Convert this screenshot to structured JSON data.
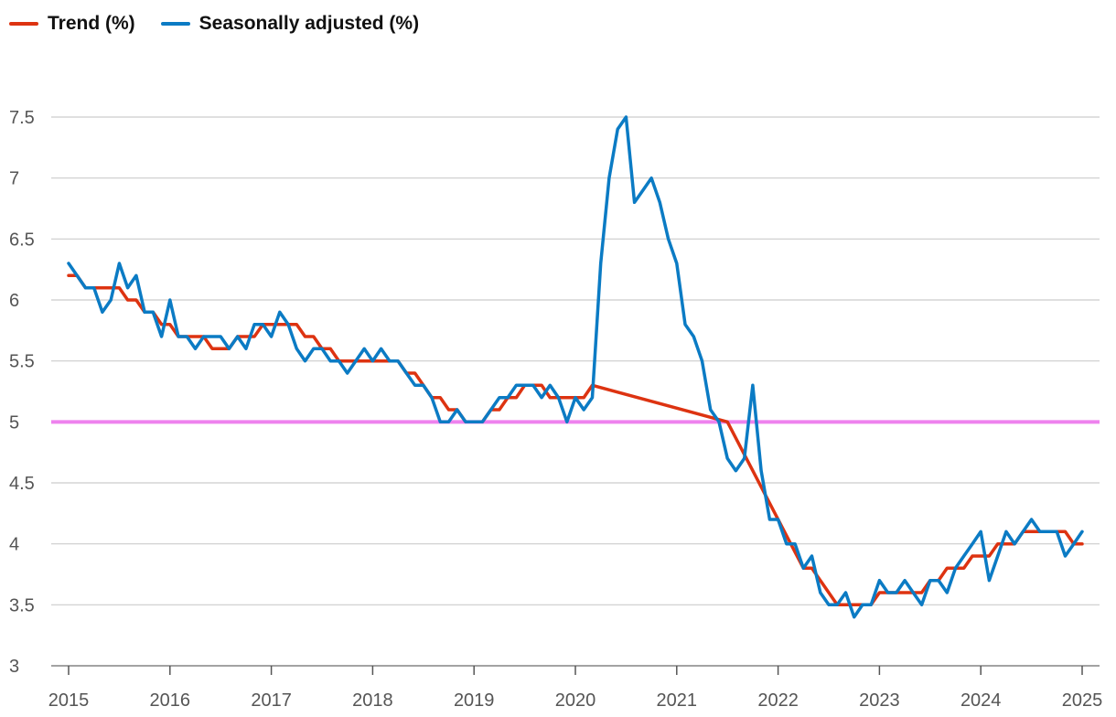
{
  "chart_data": {
    "type": "line",
    "title": "",
    "xlabel": "",
    "ylabel": "",
    "xlim": [
      2015,
      2025
    ],
    "ylim": [
      3,
      7.5
    ],
    "y_ticks": [
      "3",
      "3.5",
      "4",
      "4.5",
      "5",
      "5.5",
      "6",
      "6.5",
      "7",
      "7.5"
    ],
    "x_ticks": [
      "2015",
      "2016",
      "2017",
      "2018",
      "2019",
      "2020",
      "2021",
      "2022",
      "2023",
      "2024",
      "2025"
    ],
    "grid": "horizontal",
    "legend_position": "top-left",
    "reference_line": {
      "y": 5,
      "color": "#ee82ee"
    },
    "series": [
      {
        "name": "Trend (%)",
        "color": "#dd3311",
        "points": [
          [
            2015.0,
            6.2
          ],
          [
            2015.083,
            6.2
          ],
          [
            2015.167,
            6.1
          ],
          [
            2015.25,
            6.1
          ],
          [
            2015.333,
            6.1
          ],
          [
            2015.417,
            6.1
          ],
          [
            2015.5,
            6.1
          ],
          [
            2015.583,
            6.0
          ],
          [
            2015.667,
            6.0
          ],
          [
            2015.75,
            5.9
          ],
          [
            2015.833,
            5.9
          ],
          [
            2015.917,
            5.8
          ],
          [
            2016.0,
            5.8
          ],
          [
            2016.083,
            5.7
          ],
          [
            2016.167,
            5.7
          ],
          [
            2016.25,
            5.7
          ],
          [
            2016.333,
            5.7
          ],
          [
            2016.417,
            5.6
          ],
          [
            2016.5,
            5.6
          ],
          [
            2016.583,
            5.6
          ],
          [
            2016.667,
            5.7
          ],
          [
            2016.75,
            5.7
          ],
          [
            2016.833,
            5.7
          ],
          [
            2016.917,
            5.8
          ],
          [
            2017.0,
            5.8
          ],
          [
            2017.083,
            5.8
          ],
          [
            2017.167,
            5.8
          ],
          [
            2017.25,
            5.8
          ],
          [
            2017.333,
            5.7
          ],
          [
            2017.417,
            5.7
          ],
          [
            2017.5,
            5.6
          ],
          [
            2017.583,
            5.6
          ],
          [
            2017.667,
            5.5
          ],
          [
            2017.75,
            5.5
          ],
          [
            2017.833,
            5.5
          ],
          [
            2017.917,
            5.5
          ],
          [
            2018.0,
            5.5
          ],
          [
            2018.083,
            5.5
          ],
          [
            2018.167,
            5.5
          ],
          [
            2018.25,
            5.5
          ],
          [
            2018.333,
            5.4
          ],
          [
            2018.417,
            5.4
          ],
          [
            2018.5,
            5.3
          ],
          [
            2018.583,
            5.2
          ],
          [
            2018.667,
            5.2
          ],
          [
            2018.75,
            5.1
          ],
          [
            2018.833,
            5.1
          ],
          [
            2018.917,
            5.0
          ],
          [
            2019.0,
            5.0
          ],
          [
            2019.083,
            5.0
          ],
          [
            2019.167,
            5.1
          ],
          [
            2019.25,
            5.1
          ],
          [
            2019.333,
            5.2
          ],
          [
            2019.417,
            5.2
          ],
          [
            2019.5,
            5.3
          ],
          [
            2019.583,
            5.3
          ],
          [
            2019.667,
            5.3
          ],
          [
            2019.75,
            5.2
          ],
          [
            2019.833,
            5.2
          ],
          [
            2019.917,
            5.2
          ],
          [
            2020.0,
            5.2
          ],
          [
            2020.083,
            5.2
          ],
          [
            2020.167,
            5.3
          ],
          [
            2021.5,
            5.0
          ],
          [
            2022.25,
            3.8
          ],
          [
            2022.333,
            3.8
          ],
          [
            2022.417,
            3.7
          ],
          [
            2022.5,
            3.6
          ],
          [
            2022.583,
            3.5
          ],
          [
            2022.667,
            3.5
          ],
          [
            2022.75,
            3.5
          ],
          [
            2022.833,
            3.5
          ],
          [
            2022.917,
            3.5
          ],
          [
            2023.0,
            3.6
          ],
          [
            2023.083,
            3.6
          ],
          [
            2023.167,
            3.6
          ],
          [
            2023.25,
            3.6
          ],
          [
            2023.333,
            3.6
          ],
          [
            2023.417,
            3.6
          ],
          [
            2023.5,
            3.7
          ],
          [
            2023.583,
            3.7
          ],
          [
            2023.667,
            3.8
          ],
          [
            2023.75,
            3.8
          ],
          [
            2023.833,
            3.8
          ],
          [
            2023.917,
            3.9
          ],
          [
            2024.0,
            3.9
          ],
          [
            2024.083,
            3.9
          ],
          [
            2024.167,
            4.0
          ],
          [
            2024.25,
            4.0
          ],
          [
            2024.333,
            4.0
          ],
          [
            2024.417,
            4.1
          ],
          [
            2024.5,
            4.1
          ],
          [
            2024.583,
            4.1
          ],
          [
            2024.667,
            4.1
          ],
          [
            2024.75,
            4.1
          ],
          [
            2024.833,
            4.1
          ],
          [
            2024.917,
            4.0
          ],
          [
            2025.0,
            4.0
          ]
        ]
      },
      {
        "name": "Seasonally adjusted (%)",
        "color": "#0b7bc4",
        "points": [
          [
            2015.0,
            6.3
          ],
          [
            2015.083,
            6.2
          ],
          [
            2015.167,
            6.1
          ],
          [
            2015.25,
            6.1
          ],
          [
            2015.333,
            5.9
          ],
          [
            2015.417,
            6.0
          ],
          [
            2015.5,
            6.3
          ],
          [
            2015.583,
            6.1
          ],
          [
            2015.667,
            6.2
          ],
          [
            2015.75,
            5.9
          ],
          [
            2015.833,
            5.9
          ],
          [
            2015.917,
            5.7
          ],
          [
            2016.0,
            6.0
          ],
          [
            2016.083,
            5.7
          ],
          [
            2016.167,
            5.7
          ],
          [
            2016.25,
            5.6
          ],
          [
            2016.333,
            5.7
          ],
          [
            2016.417,
            5.7
          ],
          [
            2016.5,
            5.7
          ],
          [
            2016.583,
            5.6
          ],
          [
            2016.667,
            5.7
          ],
          [
            2016.75,
            5.6
          ],
          [
            2016.833,
            5.8
          ],
          [
            2016.917,
            5.8
          ],
          [
            2017.0,
            5.7
          ],
          [
            2017.083,
            5.9
          ],
          [
            2017.167,
            5.8
          ],
          [
            2017.25,
            5.6
          ],
          [
            2017.333,
            5.5
          ],
          [
            2017.417,
            5.6
          ],
          [
            2017.5,
            5.6
          ],
          [
            2017.583,
            5.5
          ],
          [
            2017.667,
            5.5
          ],
          [
            2017.75,
            5.4
          ],
          [
            2017.833,
            5.5
          ],
          [
            2017.917,
            5.6
          ],
          [
            2018.0,
            5.5
          ],
          [
            2018.083,
            5.6
          ],
          [
            2018.167,
            5.5
          ],
          [
            2018.25,
            5.5
          ],
          [
            2018.333,
            5.4
          ],
          [
            2018.417,
            5.3
          ],
          [
            2018.5,
            5.3
          ],
          [
            2018.583,
            5.2
          ],
          [
            2018.667,
            5.0
          ],
          [
            2018.75,
            5.0
          ],
          [
            2018.833,
            5.1
          ],
          [
            2018.917,
            5.0
          ],
          [
            2019.0,
            5.0
          ],
          [
            2019.083,
            5.0
          ],
          [
            2019.167,
            5.1
          ],
          [
            2019.25,
            5.2
          ],
          [
            2019.333,
            5.2
          ],
          [
            2019.417,
            5.3
          ],
          [
            2019.5,
            5.3
          ],
          [
            2019.583,
            5.3
          ],
          [
            2019.667,
            5.2
          ],
          [
            2019.75,
            5.3
          ],
          [
            2019.833,
            5.2
          ],
          [
            2019.917,
            5.0
          ],
          [
            2020.0,
            5.2
          ],
          [
            2020.083,
            5.1
          ],
          [
            2020.167,
            5.2
          ],
          [
            2020.25,
            6.3
          ],
          [
            2020.333,
            7.0
          ],
          [
            2020.417,
            7.4
          ],
          [
            2020.5,
            7.5
          ],
          [
            2020.583,
            6.8
          ],
          [
            2020.667,
            6.9
          ],
          [
            2020.75,
            7.0
          ],
          [
            2020.833,
            6.8
          ],
          [
            2020.917,
            6.5
          ],
          [
            2021.0,
            6.3
          ],
          [
            2021.083,
            5.8
          ],
          [
            2021.167,
            5.7
          ],
          [
            2021.25,
            5.5
          ],
          [
            2021.333,
            5.1
          ],
          [
            2021.417,
            5.0
          ],
          [
            2021.5,
            4.7
          ],
          [
            2021.583,
            4.6
          ],
          [
            2021.667,
            4.7
          ],
          [
            2021.75,
            5.3
          ],
          [
            2021.833,
            4.6
          ],
          [
            2021.917,
            4.2
          ],
          [
            2022.0,
            4.2
          ],
          [
            2022.083,
            4.0
          ],
          [
            2022.167,
            4.0
          ],
          [
            2022.25,
            3.8
          ],
          [
            2022.333,
            3.9
          ],
          [
            2022.417,
            3.6
          ],
          [
            2022.5,
            3.5
          ],
          [
            2022.583,
            3.5
          ],
          [
            2022.667,
            3.6
          ],
          [
            2022.75,
            3.4
          ],
          [
            2022.833,
            3.5
          ],
          [
            2022.917,
            3.5
          ],
          [
            2023.0,
            3.7
          ],
          [
            2023.083,
            3.6
          ],
          [
            2023.167,
            3.6
          ],
          [
            2023.25,
            3.7
          ],
          [
            2023.333,
            3.6
          ],
          [
            2023.417,
            3.5
          ],
          [
            2023.5,
            3.7
          ],
          [
            2023.583,
            3.7
          ],
          [
            2023.667,
            3.6
          ],
          [
            2023.75,
            3.8
          ],
          [
            2023.833,
            3.9
          ],
          [
            2023.917,
            4.0
          ],
          [
            2024.0,
            4.1
          ],
          [
            2024.083,
            3.7
          ],
          [
            2024.167,
            3.9
          ],
          [
            2024.25,
            4.1
          ],
          [
            2024.333,
            4.0
          ],
          [
            2024.417,
            4.1
          ],
          [
            2024.5,
            4.2
          ],
          [
            2024.583,
            4.1
          ],
          [
            2024.667,
            4.1
          ],
          [
            2024.75,
            4.1
          ],
          [
            2024.833,
            3.9
          ],
          [
            2024.917,
            4.0
          ],
          [
            2025.0,
            4.1
          ]
        ]
      }
    ]
  }
}
